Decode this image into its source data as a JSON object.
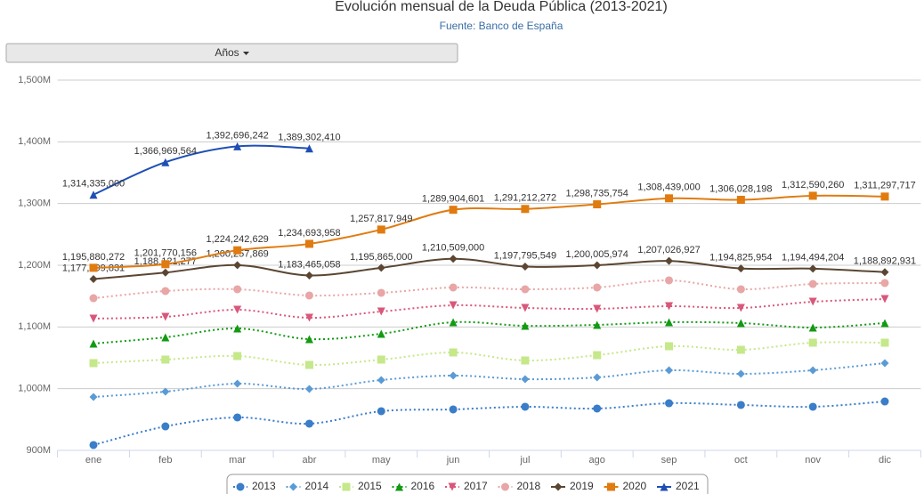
{
  "controls": {
    "years_button": "Años"
  },
  "chart_data": {
    "type": "line",
    "title": "Evolución mensual de la Deuda Pública (2013-2021)",
    "subtitle": "Fuente: Banco de España",
    "categories": [
      "ene",
      "feb",
      "mar",
      "abr",
      "may",
      "jun",
      "jul",
      "ago",
      "sep",
      "oct",
      "nov",
      "dic"
    ],
    "ylim": [
      900000000,
      1500000000
    ],
    "yticks": [
      {
        "value": 900000000,
        "label": "900M"
      },
      {
        "value": 1000000000,
        "label": "1,000M"
      },
      {
        "value": 1100000000,
        "label": "1,100M"
      },
      {
        "value": 1200000000,
        "label": "1,200M"
      },
      {
        "value": 1300000000,
        "label": "1,300M"
      },
      {
        "value": 1400000000,
        "label": "1,400M"
      },
      {
        "value": 1500000000,
        "label": "1,500M"
      }
    ],
    "grid": true,
    "legend": "bottom",
    "series": [
      {
        "name": "2013",
        "color": "#3a7dc9",
        "marker": "circle",
        "line_style": "dotted",
        "values": [
          908700000,
          938900000,
          953400000,
          943300000,
          963500000,
          966400000,
          970700000,
          967800000,
          976400000,
          973600000,
          970700000,
          979300000
        ]
      },
      {
        "name": "2014",
        "color": "#5b9bd5",
        "marker": "diamond",
        "line_style": "dotted",
        "values": [
          986500000,
          995200000,
          1008200000,
          999500000,
          1014000000,
          1021200000,
          1015400000,
          1018300000,
          1029800000,
          1024000000,
          1029800000,
          1041400000
        ]
      },
      {
        "name": "2015",
        "color": "#c5e88a",
        "marker": "square",
        "line_style": "dotted",
        "values": [
          1041400000,
          1047100000,
          1052900000,
          1038500000,
          1047100000,
          1058700000,
          1045700000,
          1054300000,
          1068800000,
          1063000000,
          1074500000,
          1074500000
        ]
      },
      {
        "name": "2016",
        "color": "#139a13",
        "marker": "triangle",
        "line_style": "dotted",
        "values": [
          1073100000,
          1083200000,
          1097600000,
          1080300000,
          1089000000,
          1107700000,
          1101900000,
          1103400000,
          1107700000,
          1106300000,
          1099000000,
          1106300000
        ]
      },
      {
        "name": "2017",
        "color": "#d9577b",
        "marker": "triangle-down",
        "line_style": "dotted",
        "values": [
          1113500000,
          1116400000,
          1127900000,
          1114900000,
          1125000000,
          1135100000,
          1130800000,
          1129400000,
          1133700000,
          1130800000,
          1140900000,
          1145200000
        ]
      },
      {
        "name": "2018",
        "color": "#e8a6a6",
        "marker": "circle",
        "line_style": "dotted",
        "values": [
          1146600000,
          1158200000,
          1161100000,
          1151000000,
          1155300000,
          1164000000,
          1161100000,
          1164000000,
          1175500000,
          1161100000,
          1169700000,
          1171200000
        ]
      },
      {
        "name": "2019",
        "color": "#5a4632",
        "marker": "diamond",
        "line_style": "solid",
        "values": [
          1177599831,
          1188121277,
          1200257869,
          1183465058,
          1195865000,
          1210509000,
          1197795549,
          1200005974,
          1207026927,
          1194825954,
          1194494204,
          1188892931
        ],
        "value_labels": [
          "1,177,599,831",
          "1,188,121,277",
          "1,200,257,869",
          "1,183,465,058",
          "1,195,865,000",
          "1,210,509,000",
          "1,197,795,549",
          "1,200,005,974",
          "1,207,026,927",
          "1,194,825,954",
          "1,194,494,204",
          "1,188,892,931"
        ]
      },
      {
        "name": "2020",
        "color": "#e07b10",
        "marker": "square",
        "line_style": "solid",
        "values": [
          1195880272,
          1201770156,
          1224242629,
          1234693958,
          1257817949,
          1289904601,
          1291212272,
          1298735754,
          1308439000,
          1306028198,
          1312590260,
          1311297717
        ],
        "value_labels": [
          "1,195,880,272",
          "1,201,770,156",
          "1,224,242,629",
          "1,234,693,958",
          "1,257,817,949",
          "1,289,904,601",
          "1,291,212,272",
          "1,298,735,754",
          "1,308,439,000",
          "1,306,028,198",
          "1,312,590,260",
          "1,311,297,717"
        ]
      },
      {
        "name": "2021",
        "color": "#1f4fb5",
        "marker": "triangle",
        "line_style": "solid",
        "values": [
          1314335000,
          1366969564,
          1392696242,
          1389302410,
          null,
          null,
          null,
          null,
          null,
          null,
          null,
          null
        ],
        "value_labels": [
          "1,314,335,000",
          "1,366,969,564",
          "1,392,696,242",
          "1,389,302,410",
          null,
          null,
          null,
          null,
          null,
          null,
          null,
          null
        ]
      }
    ]
  }
}
